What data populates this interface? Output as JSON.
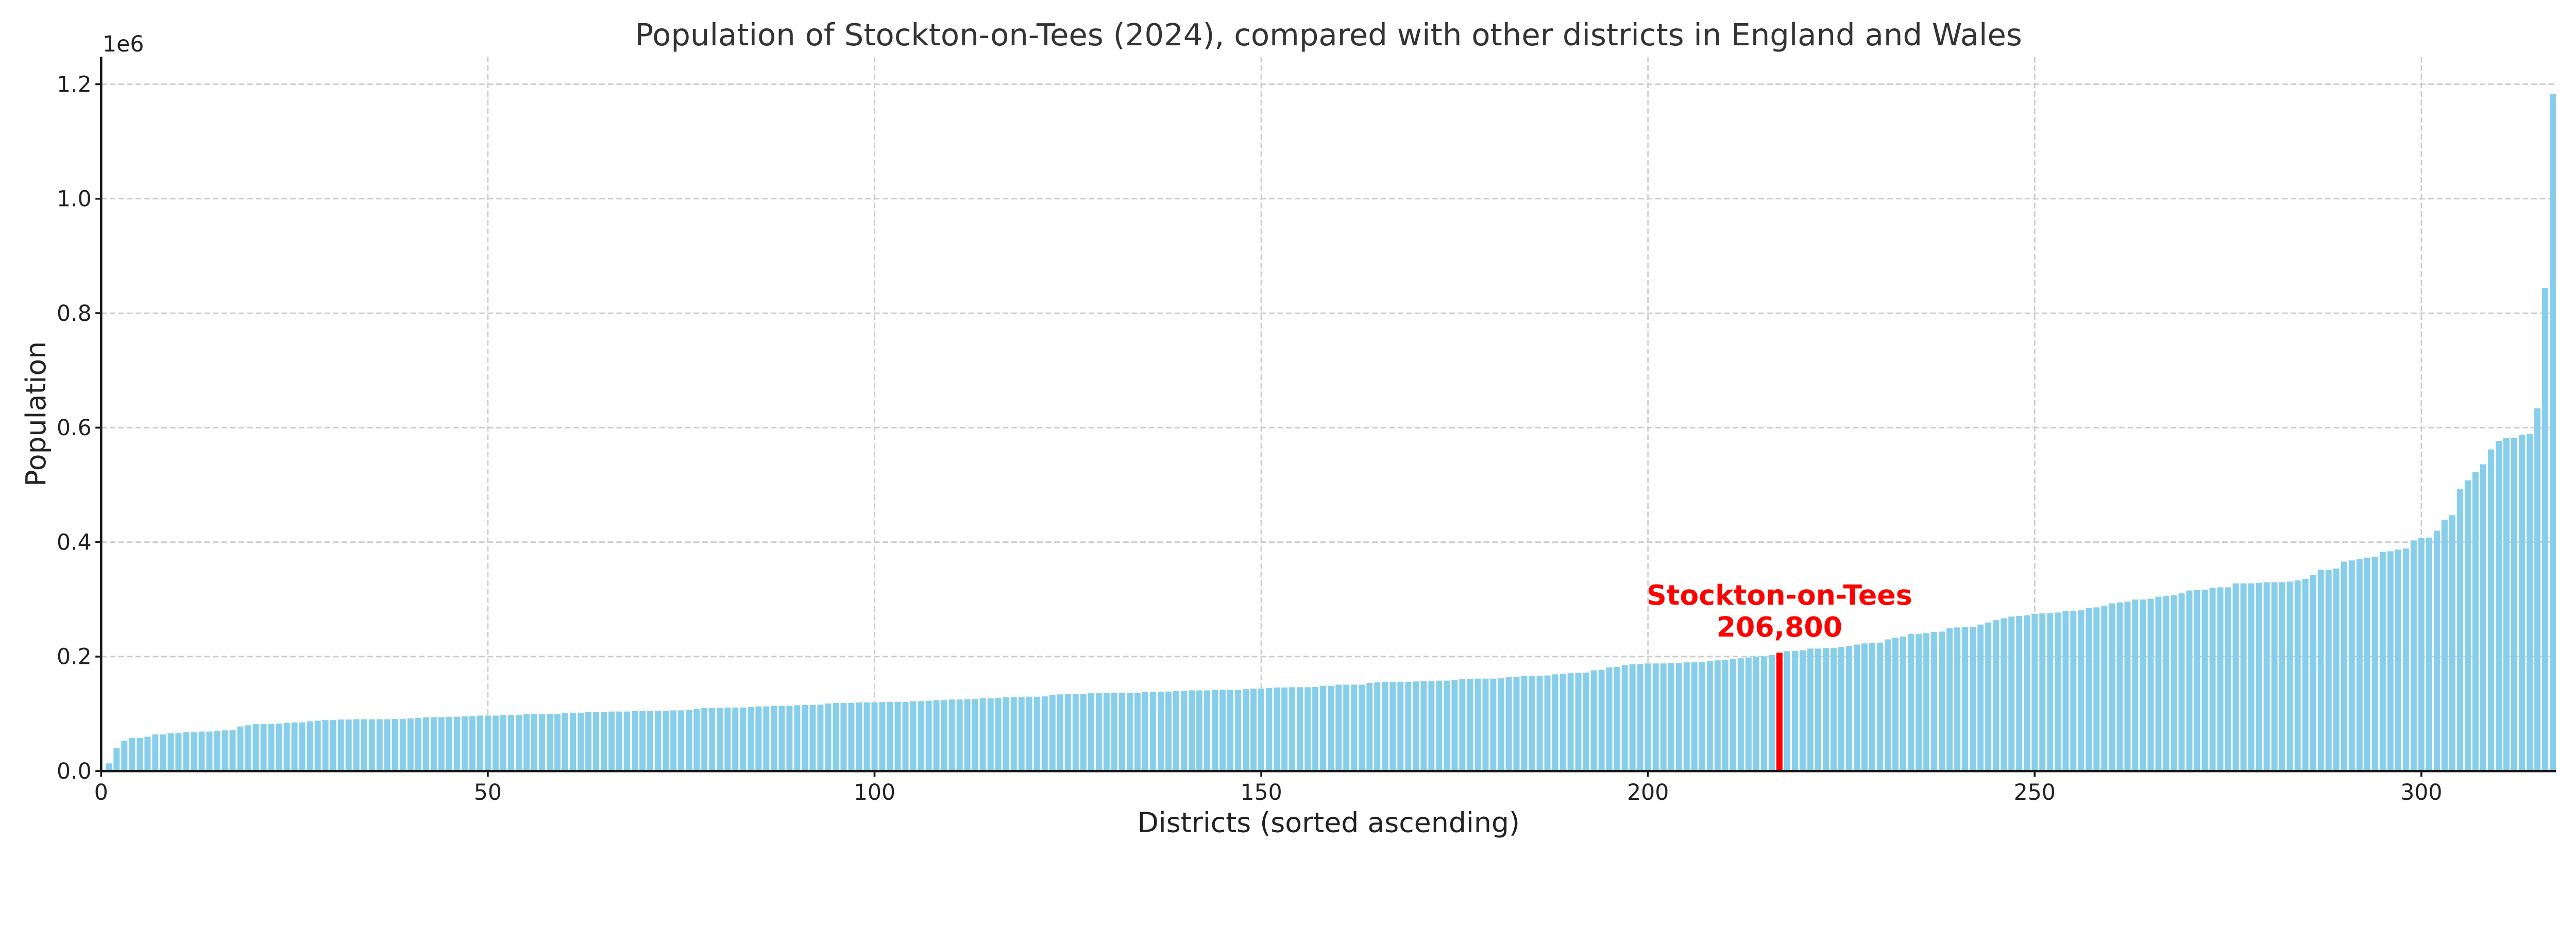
{
  "chart_data": {
    "type": "bar",
    "title": "Population of Stockton-on-Tees (2024), compared with other districts in England and Wales",
    "xlabel": "Districts (sorted ascending)",
    "ylabel": "Population",
    "y_offset_label": "1e6",
    "xlim": [
      0,
      317.4
    ],
    "ylim": [
      0,
      1248000
    ],
    "x_ticks": [
      0,
      50,
      100,
      150,
      200,
      250,
      300
    ],
    "x_tick_labels": [
      "0",
      "50",
      "100",
      "150",
      "200",
      "250",
      "300"
    ],
    "y_ticks": [
      0,
      200000,
      400000,
      600000,
      800000,
      1000000,
      1200000
    ],
    "y_tick_labels": [
      "0.0",
      "0.2",
      "0.4",
      "0.6",
      "0.8",
      "1.0",
      "1.2"
    ],
    "grid": true,
    "colors": {
      "bar": "#87ceeb",
      "highlight": "#ff0000",
      "grid": "#cccccc"
    },
    "highlight": {
      "index": 217,
      "name": "Stockton-on-Tees",
      "value": 206800,
      "value_label": "206,800"
    },
    "values": [
      2300,
      13400,
      40000,
      53000,
      58000,
      58000,
      60000,
      64000,
      64000,
      66000,
      66000,
      68000,
      68000,
      69000,
      69000,
      70000,
      71000,
      72000,
      78000,
      80000,
      82000,
      82000,
      82000,
      83000,
      84000,
      85000,
      85000,
      87000,
      88000,
      89000,
      89000,
      90000,
      90000,
      90500,
      90500,
      90500,
      90500,
      90500,
      91000,
      91000,
      92000,
      93000,
      94000,
      94000,
      94000,
      95000,
      95000,
      95500,
      96000,
      97000,
      97000,
      97000,
      98000,
      98000,
      98000,
      99500,
      100000,
      100000,
      100000,
      100000,
      101000,
      102000,
      102000,
      103000,
      103000,
      103000,
      104000,
      104000,
      104000,
      105000,
      105000,
      105000,
      105500,
      105500,
      106000,
      106000,
      107000,
      109000,
      110000,
      110000,
      110500,
      111000,
      111000,
      111000,
      112000,
      113000,
      113000,
      114000,
      114000,
      114000,
      115000,
      115500,
      115500,
      116000,
      118000,
      119000,
      119000,
      119000,
      120000,
      120000,
      120000,
      120500,
      121000,
      121000,
      121000,
      122000,
      122000,
      123000,
      124000,
      124000,
      125000,
      125000,
      125500,
      126000,
      127000,
      127000,
      128000,
      129000,
      129000,
      129000,
      130000,
      130000,
      130500,
      133000,
      134000,
      135000,
      135000,
      135000,
      136000,
      136000,
      136000,
      137000,
      137000,
      137000,
      137000,
      138000,
      138000,
      138000,
      139000,
      140000,
      140000,
      141000,
      141000,
      141000,
      141500,
      142000,
      142000,
      142000,
      143000,
      144000,
      144000,
      145000,
      146000,
      146000,
      146500,
      146500,
      146500,
      147000,
      149000,
      149000,
      151000,
      151000,
      151000,
      151000,
      154000,
      155000,
      156000,
      156000,
      156000,
      156000,
      156500,
      157000,
      157000,
      158000,
      158000,
      159000,
      161000,
      161000,
      161500,
      161500,
      161500,
      162000,
      164000,
      165000,
      166000,
      166500,
      166500,
      167000,
      169000,
      170000,
      171000,
      171500,
      172000,
      176000,
      176600,
      181000,
      182000,
      185000,
      186500,
      187000,
      188000,
      188000,
      188000,
      188700,
      188700,
      190000,
      190000,
      191000,
      192500,
      193500,
      194000,
      196000,
      197000,
      198500,
      200000,
      200500,
      203000,
      206800,
      209400,
      210000,
      211000,
      214000,
      214000,
      215000,
      215000,
      217000,
      218600,
      221000,
      223000,
      223600,
      224500,
      230000,
      233000,
      235000,
      239500,
      239500,
      241000,
      243000,
      243700,
      249500,
      251000,
      252000,
      252000,
      256000,
      259600,
      263700,
      267000,
      270000,
      271000,
      272000,
      274600,
      275400,
      276000,
      277000,
      280000,
      280000,
      281000,
      284600,
      286000,
      288800,
      293000,
      294600,
      296000,
      299700,
      299700,
      301000,
      304700,
      306000,
      307000,
      310500,
      315500,
      316000,
      317000,
      320500,
      321000,
      321000,
      328000,
      328000,
      328000,
      329000,
      330000,
      330000,
      330000,
      331000,
      333000,
      336000,
      343000,
      352000,
      352000,
      354000,
      366000,
      368000,
      370000,
      373000,
      374000,
      383000,
      384000,
      387000,
      389000,
      403000,
      407000,
      408000,
      420000,
      439000,
      447000,
      493000,
      508000,
      522000,
      536000,
      562000,
      577000,
      582000,
      582000,
      587000,
      589000,
      634000,
      844000,
      1183000
    ]
  }
}
